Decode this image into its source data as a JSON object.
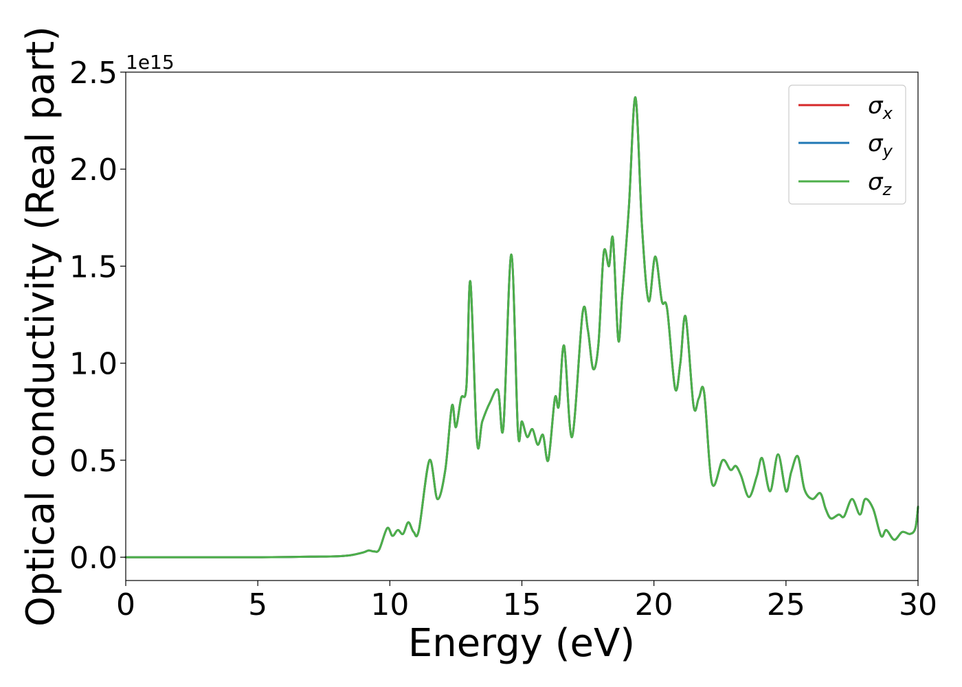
{
  "chart_data": {
    "type": "line",
    "title": "",
    "xlabel": "Energy (eV)",
    "ylabel": "Optical conductivity (Real part)",
    "xlim": [
      0,
      30
    ],
    "ylim": [
      -0.12,
      2.5
    ],
    "y_offset_text": "1e15",
    "y_scale_factor": 1000000000000000.0,
    "x_ticks": [
      0,
      5,
      10,
      15,
      20,
      25,
      30
    ],
    "x_tick_labels": [
      "0",
      "5",
      "10",
      "15",
      "20",
      "25",
      "30"
    ],
    "y_ticks": [
      0.0,
      0.5,
      1.0,
      1.5,
      2.0,
      2.5
    ],
    "y_tick_labels": [
      "0.0",
      "0.5",
      "1.0",
      "1.5",
      "2.0",
      "2.5"
    ],
    "grid": false,
    "legend_position": "top-right",
    "x": [
      0,
      5,
      7,
      8,
      8.5,
      9.0,
      9.2,
      9.4,
      9.6,
      9.9,
      10.1,
      10.3,
      10.5,
      10.7,
      10.9,
      11.1,
      11.5,
      11.8,
      12.1,
      12.35,
      12.5,
      12.7,
      12.9,
      13.05,
      13.3,
      13.5,
      13.8,
      14.1,
      14.3,
      14.6,
      14.85,
      15.0,
      15.2,
      15.4,
      15.6,
      15.8,
      16.0,
      16.25,
      16.4,
      16.6,
      16.9,
      17.3,
      17.5,
      17.7,
      17.9,
      18.1,
      18.3,
      18.45,
      18.65,
      18.8,
      19.05,
      19.3,
      19.55,
      19.8,
      20.05,
      20.3,
      20.5,
      20.8,
      21.0,
      21.2,
      21.5,
      21.7,
      21.9,
      22.2,
      22.6,
      22.9,
      23.1,
      23.3,
      23.6,
      23.9,
      24.1,
      24.4,
      24.7,
      25.0,
      25.2,
      25.45,
      25.7,
      26.0,
      26.3,
      26.5,
      26.7,
      27.0,
      27.2,
      27.5,
      27.8,
      28.0,
      28.3,
      28.6,
      28.8,
      29.1,
      29.4,
      29.7,
      29.9,
      30.0
    ],
    "series": [
      {
        "name": "σx",
        "color": "#d62728",
        "values": [
          0.0,
          0.0,
          0.003,
          0.005,
          0.01,
          0.025,
          0.035,
          0.03,
          0.04,
          0.15,
          0.11,
          0.14,
          0.12,
          0.18,
          0.13,
          0.14,
          0.5,
          0.3,
          0.45,
          0.78,
          0.67,
          0.82,
          0.88,
          1.42,
          0.6,
          0.7,
          0.8,
          0.86,
          0.67,
          1.56,
          0.65,
          0.7,
          0.62,
          0.66,
          0.58,
          0.63,
          0.5,
          0.82,
          0.78,
          1.09,
          0.62,
          1.26,
          1.17,
          0.97,
          1.1,
          1.57,
          1.5,
          1.64,
          1.12,
          1.35,
          1.8,
          2.37,
          1.7,
          1.32,
          1.55,
          1.32,
          1.28,
          0.87,
          1.0,
          1.24,
          0.78,
          0.82,
          0.85,
          0.38,
          0.5,
          0.45,
          0.47,
          0.42,
          0.31,
          0.42,
          0.51,
          0.34,
          0.53,
          0.34,
          0.44,
          0.52,
          0.35,
          0.3,
          0.33,
          0.25,
          0.2,
          0.22,
          0.21,
          0.3,
          0.22,
          0.3,
          0.25,
          0.11,
          0.14,
          0.09,
          0.13,
          0.12,
          0.15,
          0.26
        ]
      },
      {
        "name": "σy",
        "color": "#1f77b4",
        "values": [
          0.0,
          0.0,
          0.003,
          0.005,
          0.01,
          0.025,
          0.035,
          0.03,
          0.04,
          0.15,
          0.11,
          0.14,
          0.12,
          0.18,
          0.13,
          0.14,
          0.5,
          0.3,
          0.45,
          0.78,
          0.67,
          0.82,
          0.88,
          1.42,
          0.6,
          0.7,
          0.8,
          0.86,
          0.67,
          1.56,
          0.65,
          0.7,
          0.62,
          0.66,
          0.58,
          0.63,
          0.5,
          0.82,
          0.78,
          1.09,
          0.62,
          1.26,
          1.17,
          0.97,
          1.1,
          1.57,
          1.5,
          1.64,
          1.12,
          1.35,
          1.8,
          2.37,
          1.7,
          1.32,
          1.55,
          1.32,
          1.28,
          0.87,
          1.0,
          1.24,
          0.78,
          0.82,
          0.85,
          0.38,
          0.5,
          0.45,
          0.47,
          0.42,
          0.31,
          0.42,
          0.51,
          0.34,
          0.53,
          0.34,
          0.44,
          0.52,
          0.35,
          0.3,
          0.33,
          0.25,
          0.2,
          0.22,
          0.21,
          0.3,
          0.22,
          0.3,
          0.25,
          0.11,
          0.14,
          0.09,
          0.13,
          0.12,
          0.15,
          0.26
        ]
      },
      {
        "name": "σz",
        "color": "#4daf4a",
        "values": [
          0.0,
          0.0,
          0.003,
          0.005,
          0.01,
          0.025,
          0.035,
          0.03,
          0.04,
          0.15,
          0.11,
          0.14,
          0.12,
          0.18,
          0.13,
          0.14,
          0.5,
          0.3,
          0.45,
          0.78,
          0.67,
          0.82,
          0.88,
          1.42,
          0.6,
          0.7,
          0.8,
          0.86,
          0.67,
          1.56,
          0.65,
          0.7,
          0.62,
          0.66,
          0.58,
          0.63,
          0.5,
          0.82,
          0.78,
          1.09,
          0.62,
          1.26,
          1.17,
          0.97,
          1.1,
          1.57,
          1.5,
          1.64,
          1.12,
          1.35,
          1.8,
          2.37,
          1.7,
          1.32,
          1.55,
          1.32,
          1.28,
          0.87,
          1.0,
          1.24,
          0.78,
          0.82,
          0.85,
          0.38,
          0.5,
          0.45,
          0.47,
          0.42,
          0.31,
          0.42,
          0.51,
          0.34,
          0.53,
          0.34,
          0.44,
          0.52,
          0.35,
          0.3,
          0.33,
          0.25,
          0.2,
          0.22,
          0.21,
          0.3,
          0.22,
          0.3,
          0.25,
          0.11,
          0.14,
          0.09,
          0.13,
          0.12,
          0.15,
          0.26
        ]
      }
    ]
  },
  "legend": {
    "entries": [
      {
        "symbol": "σ",
        "sub": "x"
      },
      {
        "symbol": "σ",
        "sub": "y"
      },
      {
        "symbol": "σ",
        "sub": "z"
      }
    ]
  }
}
